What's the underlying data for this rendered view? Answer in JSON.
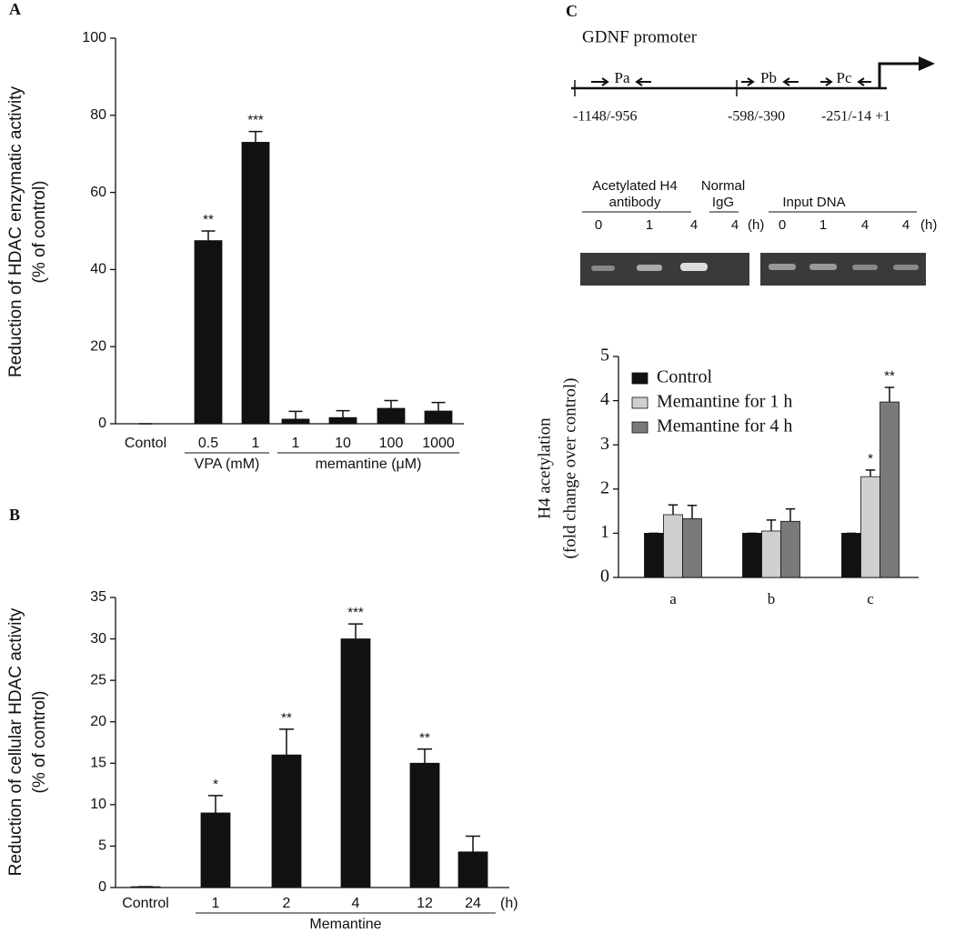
{
  "chart_data": [
    {
      "type": "bar",
      "panel": "A",
      "y_label": [
        "Reduction of HDAC enzymatic activity",
        "(% of control)"
      ],
      "categories": [
        "Contol",
        "0.5",
        "1",
        "1",
        "10",
        "100",
        "1000"
      ],
      "values": [
        0,
        47.5,
        73,
        1.2,
        1.6,
        4,
        3.3
      ],
      "errors": [
        0,
        2.5,
        2.8,
        2,
        1.8,
        2,
        2.2
      ],
      "significance": [
        null,
        "**",
        "***",
        null,
        null,
        null,
        null
      ],
      "groups": [
        {
          "label": "VPA (mM)"
        },
        {
          "label": "memantine (μM)"
        }
      ],
      "color": "#111111",
      "ylim": [
        0,
        100
      ],
      "yticks": [
        0,
        20,
        40,
        60,
        80,
        100
      ]
    },
    {
      "type": "bar",
      "panel": "B",
      "y_label": [
        "Reduction of cellular HDAC activity",
        "(% of control)"
      ],
      "categories": [
        "Control",
        "1",
        "2",
        "4",
        "12",
        "24"
      ],
      "unit": "(h)",
      "values": [
        0.1,
        9,
        16,
        30,
        15,
        4.3
      ],
      "errors": [
        0,
        2.1,
        3.1,
        1.8,
        1.7,
        1.9
      ],
      "significance": [
        null,
        "*",
        "**",
        "***",
        "**",
        null
      ],
      "groups": [
        {
          "label": "Memantine"
        }
      ],
      "color": "#111111",
      "ylim": [
        0,
        35
      ],
      "yticks": [
        0,
        5,
        10,
        15,
        20,
        25,
        30,
        35
      ]
    },
    {
      "type": "bar",
      "panel": "C",
      "y_label": [
        "H4 acetylation",
        "(fold change over control)"
      ],
      "categories": [
        "a",
        "b",
        "c"
      ],
      "series": [
        {
          "name": "Control",
          "color": "#111111",
          "values": [
            1,
            1,
            1
          ],
          "errors": [
            0,
            0,
            0
          ],
          "significance": [
            null,
            null,
            null
          ]
        },
        {
          "name": "Memantine for 1 h",
          "color": "#cfcfcf",
          "values": [
            1.42,
            1.05,
            2.28
          ],
          "errors": [
            0.22,
            0.25,
            0.15
          ],
          "significance": [
            null,
            null,
            "*"
          ]
        },
        {
          "name": "Memantine for 4 h",
          "color": "#7a7a7a",
          "values": [
            1.33,
            1.27,
            3.97
          ],
          "errors": [
            0.3,
            0.28,
            0.33
          ],
          "significance": [
            null,
            null,
            "**"
          ]
        }
      ],
      "legend": "upper left",
      "ylim": [
        0,
        5
      ],
      "yticks": [
        0,
        1,
        2,
        3,
        4,
        5
      ]
    }
  ],
  "promoter": {
    "title": "GDNF promoter",
    "primers": [
      "Pa",
      "Pb",
      "Pc"
    ],
    "positions": [
      "-1148/-956",
      "-598/-390",
      "-251/-14 +1"
    ]
  },
  "gel": {
    "header": [
      "Acetylated H4",
      "antibody",
      "Normal",
      "IgG",
      "Input DNA"
    ],
    "lanes": [
      "0",
      "1",
      "4",
      "4",
      "0",
      "1",
      "4",
      "4"
    ],
    "unit": "(h)"
  }
}
